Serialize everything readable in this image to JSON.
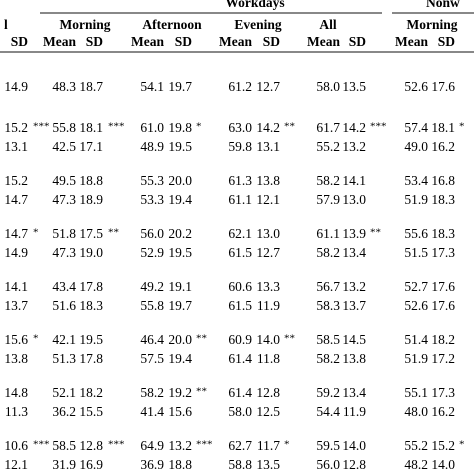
{
  "header": {
    "group_left": "Workdays",
    "group_right": "Nonw",
    "periods": [
      "l",
      "Morning",
      "Afternoon",
      "Evening",
      "All",
      "Morning"
    ],
    "sub": [
      "SD",
      "Mean",
      "SD",
      "Mean",
      "SD",
      "Mean",
      "SD",
      "Mean",
      "SD",
      "Mean",
      "SD"
    ]
  },
  "table": {
    "rows": [
      [
        "14.9",
        null,
        "48.3",
        "18.7",
        null,
        "54.1",
        "19.7",
        null,
        "61.2",
        "12.7",
        null,
        "58.0",
        "13.5",
        null,
        "52.6",
        "17.6",
        null
      ],
      [
        "15.2",
        "***",
        "55.8",
        "18.1",
        "***",
        "61.0",
        "19.8",
        "*",
        "63.0",
        "14.2",
        "**",
        "61.7",
        "14.2",
        "***",
        "57.4",
        "18.1",
        "*"
      ],
      [
        "13.1",
        null,
        "42.5",
        "17.1",
        null,
        "48.9",
        "19.5",
        null,
        "59.8",
        "13.1",
        null,
        "55.2",
        "13.2",
        null,
        "49.0",
        "16.2",
        null
      ],
      [
        "15.2",
        null,
        "49.5",
        "18.8",
        null,
        "55.3",
        "20.0",
        null,
        "61.3",
        "13.8",
        null,
        "58.2",
        "14.1",
        null,
        "53.4",
        "16.8",
        null
      ],
      [
        "14.7",
        null,
        "47.3",
        "18.9",
        null,
        "53.3",
        "19.4",
        null,
        "61.1",
        "12.1",
        null,
        "57.9",
        "13.0",
        null,
        "51.9",
        "18.3",
        null
      ],
      [
        "14.7",
        "*",
        "51.8",
        "17.5",
        "**",
        "56.0",
        "20.2",
        null,
        "62.1",
        "13.0",
        null,
        "61.1",
        "13.9",
        "**",
        "55.6",
        "18.3",
        null
      ],
      [
        "14.9",
        null,
        "47.3",
        "19.0",
        null,
        "52.9",
        "19.5",
        null,
        "61.5",
        "12.7",
        null,
        "58.2",
        "13.4",
        null,
        "51.5",
        "17.3",
        null
      ],
      [
        "14.1",
        null,
        "43.4",
        "17.8",
        null,
        "49.2",
        "19.1",
        null,
        "60.6",
        "13.3",
        null,
        "56.7",
        "13.2",
        null,
        "52.7",
        "17.6",
        null
      ],
      [
        "13.7",
        null,
        "51.6",
        "18.3",
        null,
        "55.8",
        "19.7",
        null,
        "61.5",
        "11.9",
        null,
        "58.3",
        "13.7",
        null,
        "52.6",
        "17.6",
        null
      ],
      [
        "15.6",
        "*",
        "42.1",
        "19.5",
        null,
        "46.4",
        "20.0",
        "**",
        "60.9",
        "14.0",
        "**",
        "58.5",
        "14.5",
        null,
        "51.4",
        "18.2",
        null
      ],
      [
        "13.8",
        null,
        "51.3",
        "17.8",
        null,
        "57.5",
        "19.4",
        null,
        "61.4",
        "11.8",
        null,
        "58.2",
        "13.8",
        null,
        "51.9",
        "17.2",
        null
      ],
      [
        "14.8",
        null,
        "52.1",
        "18.2",
        null,
        "58.2",
        "19.2",
        "**",
        "61.4",
        "12.8",
        null,
        "59.2",
        "13.4",
        null,
        "55.1",
        "17.3",
        null
      ],
      [
        "11.3",
        null,
        "36.2",
        "15.5",
        null,
        "41.4",
        "15.6",
        null,
        "58.0",
        "12.5",
        null,
        "54.4",
        "11.9",
        null,
        "48.0",
        "16.2",
        null
      ],
      [
        "10.6",
        "***",
        "58.5",
        "12.8",
        "***",
        "64.9",
        "13.2",
        "***",
        "62.7",
        "11.7",
        "*",
        "59.5",
        "14.0",
        null,
        "55.2",
        "15.2",
        "*"
      ],
      [
        "12.1",
        null,
        "31.9",
        "16.9",
        null,
        "36.9",
        "18.8",
        null,
        "58.8",
        "13.5",
        null,
        "56.0",
        "12.8",
        null,
        "48.2",
        "14.0",
        null
      ]
    ]
  }
}
